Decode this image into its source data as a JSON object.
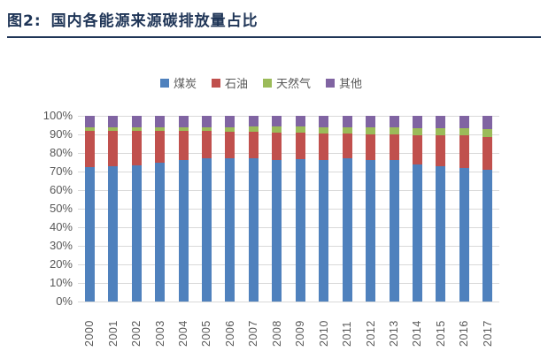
{
  "figure": {
    "title_prefix": "图2:",
    "title_text": "国内各能源来源碳排放量占比",
    "title_color": "#1f3557"
  },
  "colors": {
    "coal": "#4f81bd",
    "oil": "#c0504d",
    "gas": "#9bbb59",
    "other": "#8064a2",
    "axis_text": "#595959",
    "gridline": "#d9d9d9"
  },
  "chart_data": {
    "type": "bar",
    "stacked": true,
    "percent": true,
    "title": "国内各能源来源碳排放量占比",
    "categories": [
      "2000",
      "2001",
      "2002",
      "2003",
      "2004",
      "2005",
      "2006",
      "2007",
      "2008",
      "2009",
      "2010",
      "2011",
      "2012",
      "2013",
      "2014",
      "2015",
      "2016",
      "2017"
    ],
    "series": [
      {
        "name": "煤炭",
        "color": "#4f81bd",
        "values": [
          72.5,
          73.0,
          73.5,
          75.0,
          76.0,
          77.0,
          77.0,
          77.0,
          76.0,
          76.5,
          76.0,
          77.0,
          76.0,
          76.0,
          74.0,
          73.0,
          72.0,
          71.0
        ]
      },
      {
        "name": "石油",
        "color": "#c0504d",
        "values": [
          19.5,
          19.0,
          18.5,
          17.0,
          16.0,
          15.0,
          14.5,
          14.5,
          15.0,
          14.5,
          14.5,
          13.5,
          14.0,
          14.0,
          15.5,
          16.5,
          17.5,
          17.5
        ]
      },
      {
        "name": "天然气",
        "color": "#9bbb59",
        "values": [
          2.0,
          2.0,
          2.0,
          2.0,
          2.0,
          2.0,
          2.5,
          3.0,
          3.5,
          3.5,
          3.5,
          3.5,
          4.0,
          4.0,
          4.0,
          4.0,
          4.0,
          4.5
        ]
      },
      {
        "name": "其他",
        "color": "#8064a2",
        "values": [
          6.0,
          6.0,
          6.0,
          6.0,
          6.0,
          6.0,
          6.0,
          5.5,
          5.5,
          5.5,
          6.0,
          6.0,
          6.0,
          6.0,
          6.5,
          6.5,
          6.5,
          7.0
        ]
      }
    ],
    "xlabel": "",
    "ylabel": "",
    "ylim": [
      0,
      100
    ],
    "y_ticks": [
      "0%",
      "10%",
      "20%",
      "30%",
      "40%",
      "50%",
      "60%",
      "70%",
      "80%",
      "90%",
      "100%"
    ],
    "grid": true,
    "legend_position": "top",
    "legend_labels": [
      "煤炭",
      "石油",
      "天然气",
      "其他"
    ]
  }
}
